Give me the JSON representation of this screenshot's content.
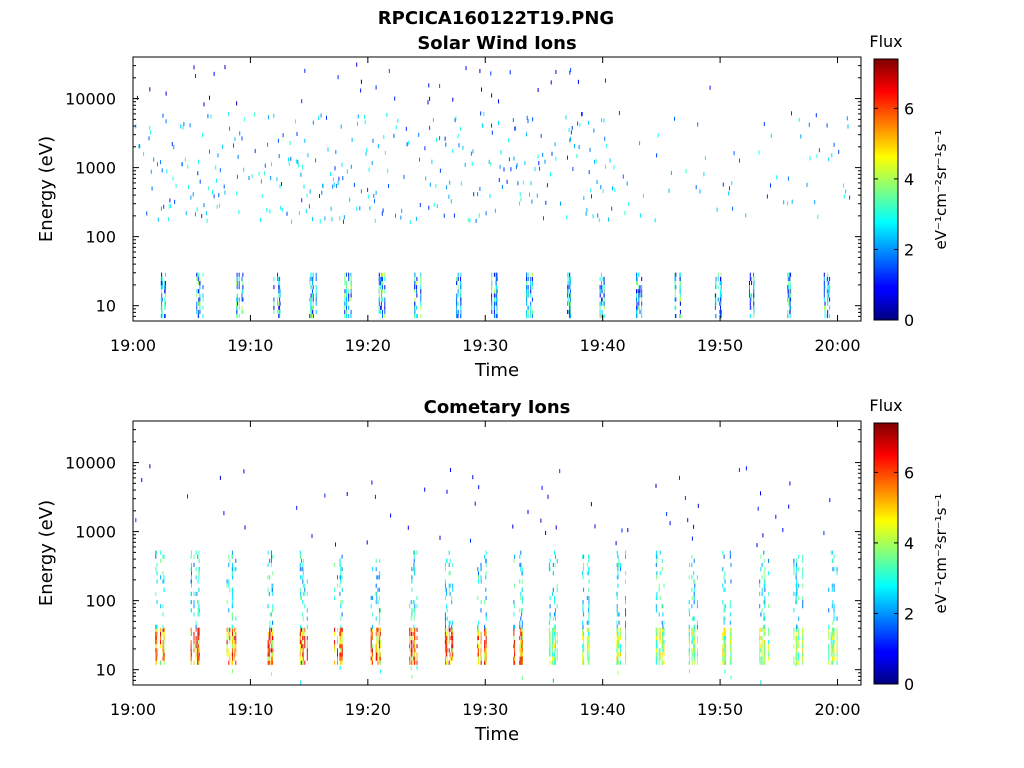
{
  "figure_title": "RPCICA160122T19.PNG",
  "colormap": "jet",
  "chart_data": [
    {
      "type": "heatmap",
      "title": "Solar Wind Ions",
      "xlabel": "Time",
      "ylabel": "Energy (eV)",
      "xlim": [
        "19:00",
        "20:02"
      ],
      "ylim": [
        6,
        40000
      ],
      "y_scale": "log",
      "x_ticks": [
        "19:00",
        "19:10",
        "19:20",
        "19:30",
        "19:40",
        "19:50",
        "20:00"
      ],
      "y_ticks": [
        "10",
        "100",
        "1000",
        "10000"
      ],
      "colorbar": {
        "label": "Flux",
        "units": "eV⁻¹cm⁻²sr⁻¹s⁻¹",
        "ticks": [
          "0",
          "2",
          "4",
          "6"
        ],
        "range": [
          0,
          7.4
        ]
      },
      "bands": [
        {
          "energy_range": [
            6,
            40000
          ],
          "typical_flux": [
            0.5,
            3.5
          ],
          "note": "sparse"
        },
        {
          "energy_range": [
            8,
            30
          ],
          "typical_flux": [
            1,
            4.5
          ]
        }
      ]
    },
    {
      "type": "heatmap",
      "title": "Cometary Ions",
      "xlabel": "Time",
      "ylabel": "Energy (eV)",
      "xlim": [
        "19:00",
        "20:02"
      ],
      "ylim": [
        6,
        40000
      ],
      "y_scale": "log",
      "x_ticks": [
        "19:00",
        "19:10",
        "19:20",
        "19:30",
        "19:40",
        "19:50",
        "20:00"
      ],
      "y_ticks": [
        "10",
        "100",
        "1000",
        "10000"
      ],
      "colorbar": {
        "label": "Flux",
        "units": "eV⁻¹cm⁻²sr⁻¹s⁻¹",
        "ticks": [
          "0",
          "2",
          "4",
          "6"
        ],
        "range": [
          0,
          7.4
        ]
      },
      "bands": [
        {
          "energy_range": [
            15,
            40
          ],
          "typical_flux": [
            4,
            6.8
          ],
          "period_minutes": 3
        },
        {
          "energy_range": [
            40,
            600
          ],
          "typical_flux": [
            2,
            4
          ]
        },
        {
          "energy_range": [
            600,
            10000
          ],
          "typical_flux": [
            0.5,
            1.5
          ],
          "note": "sparse"
        }
      ]
    }
  ]
}
